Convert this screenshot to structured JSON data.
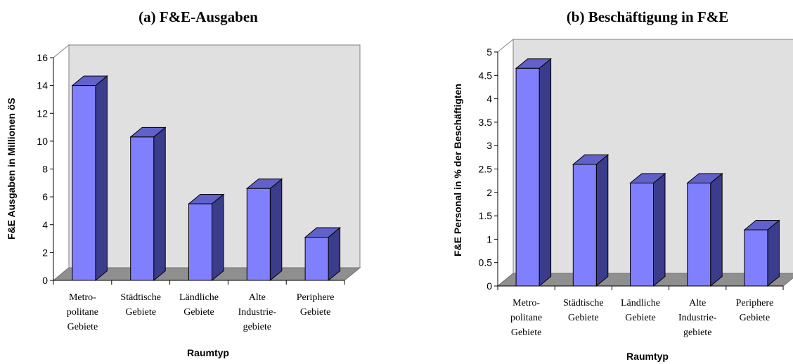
{
  "chart_data": [
    {
      "type": "bar",
      "title": "(a) F&E-Ausgaben",
      "xlabel": "Raumtyp",
      "ylabel": "F&E Ausgaben in Millionen öS",
      "ylim": [
        0,
        16
      ],
      "yticks": [
        0,
        2,
        4,
        6,
        8,
        10,
        12,
        14,
        16
      ],
      "categories": [
        [
          "Metro-",
          "politane",
          "Gebiete"
        ],
        [
          "Städtische",
          "Gebiete"
        ],
        [
          "Ländliche",
          "Gebiete"
        ],
        [
          "Alte",
          "Industrie-",
          "gebiete"
        ],
        [
          "Periphere",
          "Gebiete"
        ]
      ],
      "values": [
        14.0,
        10.3,
        5.5,
        6.6,
        3.1
      ],
      "grid": false,
      "three_d": true,
      "colors": {
        "bar_front": "#8080ff",
        "bar_top": "#6161c9",
        "bar_side": "#3c3c8c",
        "back_wall": "#e0e0e0",
        "floor": "#8f8f8f"
      }
    },
    {
      "type": "bar",
      "title": "(b) Beschäftigung in F&E",
      "xlabel": "Raumtyp",
      "ylabel": "F&E Personal in % der Beschäftigten",
      "ylim": [
        0,
        5
      ],
      "yticks": [
        0,
        0.5,
        1,
        1.5,
        2,
        2.5,
        3,
        3.5,
        4,
        4.5,
        5
      ],
      "categories": [
        [
          "Metro-",
          "politane",
          "Gebiete"
        ],
        [
          "Städtische",
          "Gebiete"
        ],
        [
          "Ländliche",
          "Gebiete"
        ],
        [
          "Alte",
          "Industrie-",
          "gebiete"
        ],
        [
          "Periphere",
          "Gebiete"
        ]
      ],
      "values": [
        4.65,
        2.6,
        2.2,
        2.2,
        1.2
      ],
      "grid": false,
      "three_d": true,
      "colors": {
        "bar_front": "#8080ff",
        "bar_top": "#6161c9",
        "bar_side": "#3c3c8c",
        "back_wall": "#e0e0e0",
        "floor": "#8f8f8f"
      }
    }
  ]
}
